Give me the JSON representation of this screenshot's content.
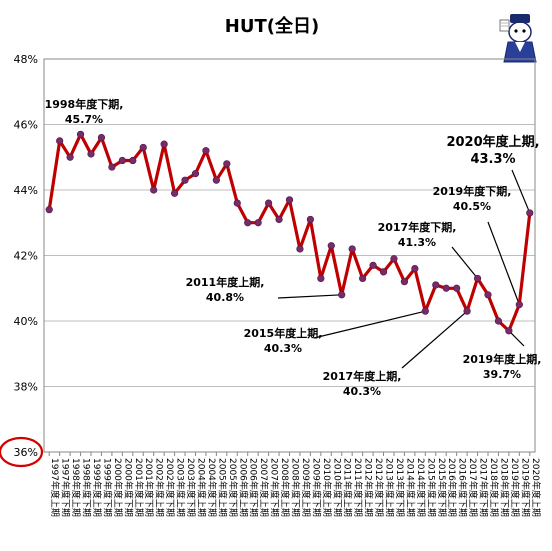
{
  "chart_data": {
    "type": "line",
    "title": "HUT(全日)",
    "xlabel": "",
    "ylabel": "",
    "ylim": [
      36,
      48
    ],
    "yticks": [
      "36%",
      "38%",
      "40%",
      "42%",
      "44%",
      "46%",
      "48%"
    ],
    "grid": true,
    "legend": "none",
    "series_color": "#c00000",
    "marker_color": "#7a2a6a",
    "categories": [
      "1997年度上期",
      "1997年度下期",
      "1998年度上期",
      "1998年度下期",
      "1999年度上期",
      "1999年度下期",
      "2000年度上期",
      "2000年度下期",
      "2001年度上期",
      "2001年度下期",
      "2002年度上期",
      "2002年度下期",
      "2003年度上期",
      "2003年度下期",
      "2004年度上期",
      "2004年度下期",
      "2005年度上期",
      "2005年度下期",
      "2006年度上期",
      "2006年度下期",
      "2007年度上期",
      "2007年度下期",
      "2008年度上期",
      "2008年度下期",
      "2009年度上期",
      "2009年度下期",
      "2010年度上期",
      "2010年度下期",
      "2011年度上期",
      "2011年度下期",
      "2012年度上期",
      "2012年度下期",
      "2013年度上期",
      "2013年度下期",
      "2014年度上期",
      "2014年度下期",
      "2015年度上期",
      "2015年度下期",
      "2016年度上期",
      "2016年度下期",
      "2017年度上期",
      "2017年度下期",
      "2018年度上期",
      "2018年度下期",
      "2019年度上期",
      "2019年度下期",
      "2020年度上期"
    ],
    "xtick_labels": [
      "1997年度上期",
      "1997年度下期",
      "1998年度上期",
      "1998年度下期",
      "1999年度上期",
      "1999年度下期",
      "2000年度上期",
      "2000年度下期",
      "2001年度上期",
      "2001年度下期",
      "2002年度上期",
      "2002年度下期",
      "2003年度上期",
      "2003年度下期",
      "2004年度上期",
      "2004年度下期",
      "2005年度上期",
      "2005年度下期",
      "2006年度上期",
      "2006年度下期",
      "2007年度上期",
      "2007年度下期",
      "2008年度上期",
      "2008年度下期",
      "2009年度上期",
      "2009年度下期",
      "2010年度上期",
      "2010年度下期",
      "2011年度上期",
      "2011年度下期",
      "2012年度上期",
      "2012年度下期",
      "2013年度上期",
      "2013年度下期",
      "2014年度上期",
      "2014年度下期",
      "2015年度上期",
      "2015年度下期",
      "2016年度上期",
      "2016年度下期",
      "2017年度上期",
      "2017年度下期",
      "2018年度上期",
      "2018年度下期",
      "2019年度上期",
      "2019年度下期",
      "2020年度上期"
    ],
    "values": [
      43.4,
      45.5,
      45.0,
      45.7,
      45.1,
      45.6,
      44.7,
      44.9,
      44.9,
      45.3,
      44.0,
      45.4,
      43.9,
      44.3,
      44.5,
      45.2,
      44.3,
      44.8,
      43.6,
      43.0,
      43.0,
      43.6,
      43.1,
      43.7,
      42.2,
      43.1,
      41.3,
      42.3,
      40.8,
      42.2,
      41.3,
      41.7,
      41.5,
      41.9,
      41.2,
      41.6,
      40.3,
      41.1,
      41.0,
      41.0,
      40.3,
      41.3,
      40.8,
      40.0,
      39.7,
      40.5,
      43.3
    ],
    "annotations": [
      {
        "index": 3,
        "line1": "1998年度下期,",
        "line2": "45.7%",
        "big": false
      },
      {
        "index": 28,
        "line1": "2011年度上期,",
        "line2": "40.8%",
        "big": false
      },
      {
        "index": 36,
        "line1": "2015年度上期,",
        "line2": "40.3%",
        "big": false
      },
      {
        "index": 40,
        "line1": "2017年度上期,",
        "line2": "40.3%",
        "big": false
      },
      {
        "index": 41,
        "line1": "2017年度下期,",
        "line2": "41.3%",
        "big": false
      },
      {
        "index": 44,
        "line1": "2019年度上期,",
        "line2": "39.7%",
        "big": false
      },
      {
        "index": 45,
        "line1": "2019年度下期,",
        "line2": "40.5%",
        "big": false
      },
      {
        "index": 46,
        "line1": "2020年度上期,",
        "line2": "43.3%",
        "big": true
      }
    ],
    "highlight_tick": "36%"
  }
}
